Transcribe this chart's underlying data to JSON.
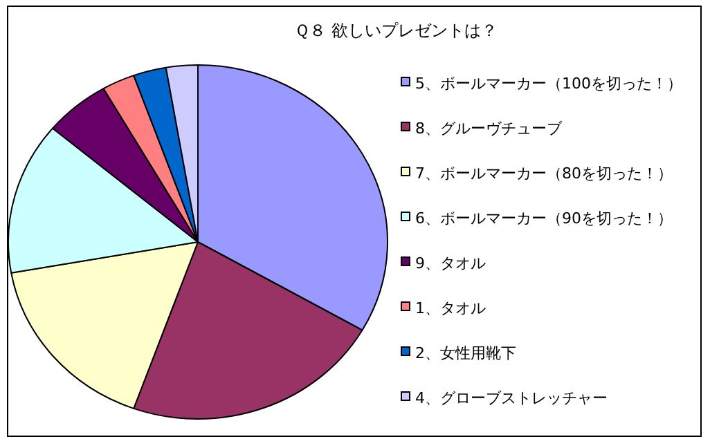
{
  "chart_data": {
    "type": "pie",
    "title": "Ｑ８ 欲しいプレゼントは？",
    "legend": "right",
    "categories": [
      "5、ボールマーカー（100を切った！）",
      "8、グルーヴチューブ",
      "7、ボールマーカー（80を切った！）",
      "6、ボールマーカー（90を切った！）",
      "9、タオル",
      "1、タオル",
      "2、女性用靴下",
      "4、グローブストレッチャー"
    ],
    "values": [
      33.3,
      22.2,
      16.7,
      13.9,
      5.6,
      2.8,
      2.8,
      2.7
    ],
    "colors": [
      "#9999ff",
      "#993366",
      "#ffffcc",
      "#ccffff",
      "#660066",
      "#ff8080",
      "#0066cc",
      "#ccccff"
    ]
  }
}
